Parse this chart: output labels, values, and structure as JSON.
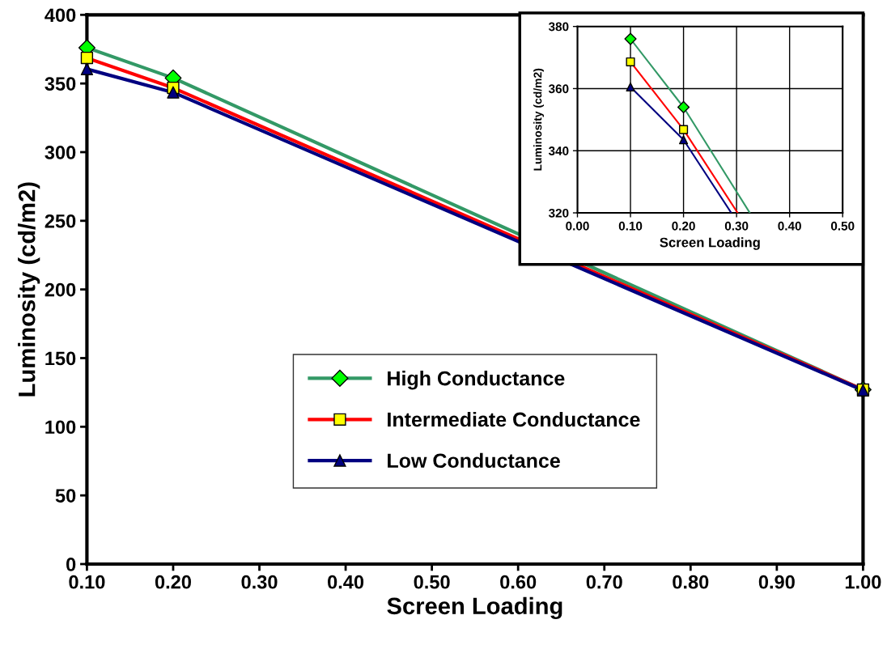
{
  "chart_data": [
    {
      "type": "line",
      "xlabel": "Screen Loading",
      "ylabel": "Luminosity (cd/m2)",
      "x": [
        0.1,
        0.2,
        1.0
      ],
      "xlim": [
        0.1,
        1.0
      ],
      "xticks": [
        {
          "value": 0.1,
          "label": "0.10"
        },
        {
          "value": 0.2,
          "label": "0.20"
        },
        {
          "value": 0.3,
          "label": "0.30"
        },
        {
          "value": 0.4,
          "label": "0.40"
        },
        {
          "value": 0.5,
          "label": "0.50"
        },
        {
          "value": 0.6,
          "label": "0.60"
        },
        {
          "value": 0.7,
          "label": "0.70"
        },
        {
          "value": 0.8,
          "label": "0.80"
        },
        {
          "value": 0.9,
          "label": "0.90"
        },
        {
          "value": 1.0,
          "label": "1.00"
        }
      ],
      "ylim": [
        0,
        400
      ],
      "yticks": [
        0,
        50,
        100,
        150,
        200,
        250,
        300,
        350,
        400
      ],
      "grid": false,
      "legend": "bottom",
      "series": [
        {
          "name": "High Conductance",
          "color": "#339966",
          "colors": [
            "#00ff00",
            "#00ff00",
            "#00ff00"
          ],
          "marker": "diamond",
          "values": [
            376,
            354,
            127
          ]
        },
        {
          "name": "Intermediate Conductance",
          "color": "#ff0000",
          "colors": [
            "#ffff00",
            "#ffff00",
            "#ffff00"
          ],
          "marker": "square",
          "values": [
            368.6,
            346.8,
            127
          ]
        },
        {
          "name": "Low Conductance",
          "color": "#000080",
          "colors": [
            "#000080",
            "#000080",
            "#000080"
          ],
          "marker": "triangle",
          "values": [
            360.5,
            343.5,
            126.5
          ]
        }
      ]
    },
    {
      "type": "line",
      "xlabel": "Screen Loading",
      "ylabel": "Luminosity (cd/m2)",
      "xlim": [
        0.0,
        0.5
      ],
      "xticks": [
        {
          "value": 0.0,
          "label": "0.00"
        },
        {
          "value": 0.1,
          "label": "0.10"
        },
        {
          "value": 0.2,
          "label": "0.20"
        },
        {
          "value": 0.3,
          "label": "0.30"
        },
        {
          "value": 0.4,
          "label": "0.40"
        },
        {
          "value": 0.5,
          "label": "0.50"
        }
      ],
      "ylim": [
        320,
        380
      ],
      "yticks": [
        320,
        340,
        360,
        380
      ],
      "grid": true,
      "series": [
        {
          "color": "#339966",
          "colors": [
            "#00ff00",
            "#00ff00",
            null
          ],
          "marker": "diamond",
          "x": [
            0.1,
            0.2,
            0.325
          ],
          "values": [
            376,
            354,
            320
          ]
        },
        {
          "color": "#ff0000",
          "colors": [
            "#ffff00",
            "#ffff00",
            null
          ],
          "marker": "square",
          "x": [
            0.1,
            0.2,
            0.302
          ],
          "values": [
            368.6,
            346.8,
            320
          ]
        },
        {
          "color": "#000080",
          "colors": [
            "#000080",
            "#000080",
            null
          ],
          "marker": "triangle",
          "x": [
            0.1,
            0.2,
            0.29
          ],
          "values": [
            360.5,
            343.5,
            320
          ]
        }
      ]
    }
  ]
}
